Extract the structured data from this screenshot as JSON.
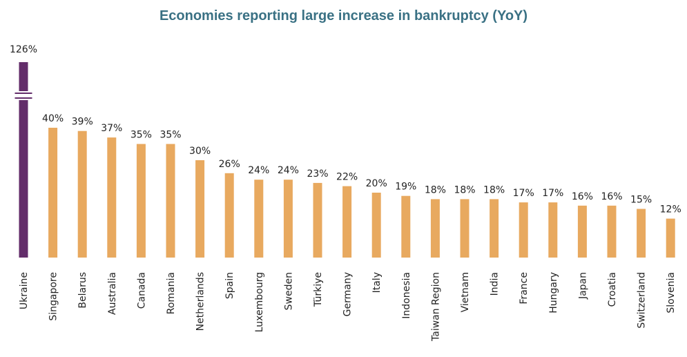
{
  "chart_data": {
    "type": "bar",
    "title": "Economies reporting large increase in bankruptcy (YoY)",
    "xlabel": "",
    "ylabel": "",
    "ylim": [
      0,
      45
    ],
    "axis_break": true,
    "grid": false,
    "legend": "none",
    "categories": [
      "Ukraine",
      "Singapore",
      "Belarus",
      "Australia",
      "Canada",
      "Romania",
      "Netherlands",
      "Spain",
      "Luxembourg",
      "Sweden",
      "Türkiye",
      "Germany",
      "Italy",
      "Indonesia",
      "Taiwan Region",
      "Vietnam",
      "India",
      "France",
      "Hungary",
      "Japan",
      "Croatia",
      "Switzerland",
      "Slovenia"
    ],
    "values": [
      126,
      40,
      39,
      37,
      35,
      35,
      30,
      26,
      24,
      24,
      23,
      22,
      20,
      19,
      18,
      18,
      18,
      17,
      17,
      16,
      16,
      15,
      12
    ],
    "value_labels": [
      "126%",
      "40%",
      "39%",
      "37%",
      "35%",
      "35%",
      "30%",
      "26%",
      "24%",
      "24%",
      "23%",
      "22%",
      "20%",
      "19%",
      "18%",
      "18%",
      "18%",
      "17%",
      "17%",
      "16%",
      "16%",
      "15%",
      "12%"
    ],
    "highlight_index": 0,
    "colors": {
      "bar": "#e8a95f",
      "highlight": "#632d6a",
      "title": "#3a7184"
    }
  }
}
